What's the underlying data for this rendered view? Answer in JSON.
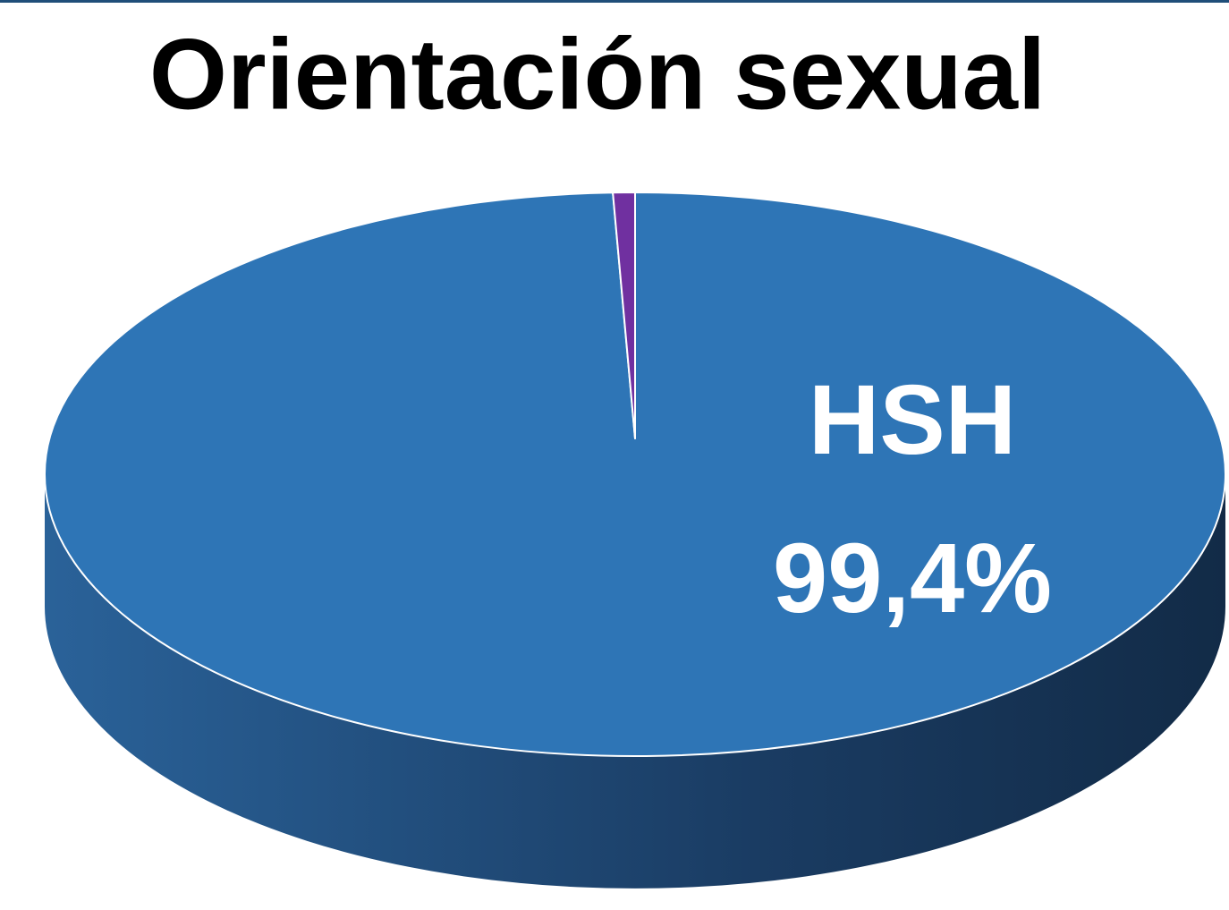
{
  "chart_data": {
    "type": "pie",
    "title": "Orientación sexual",
    "categories": [
      "HSH",
      null
    ],
    "values": [
      99.4,
      0.6
    ],
    "value_labels": [
      "99,4%",
      null
    ],
    "colors": [
      "#2e75b6",
      "#7030a0"
    ]
  }
}
